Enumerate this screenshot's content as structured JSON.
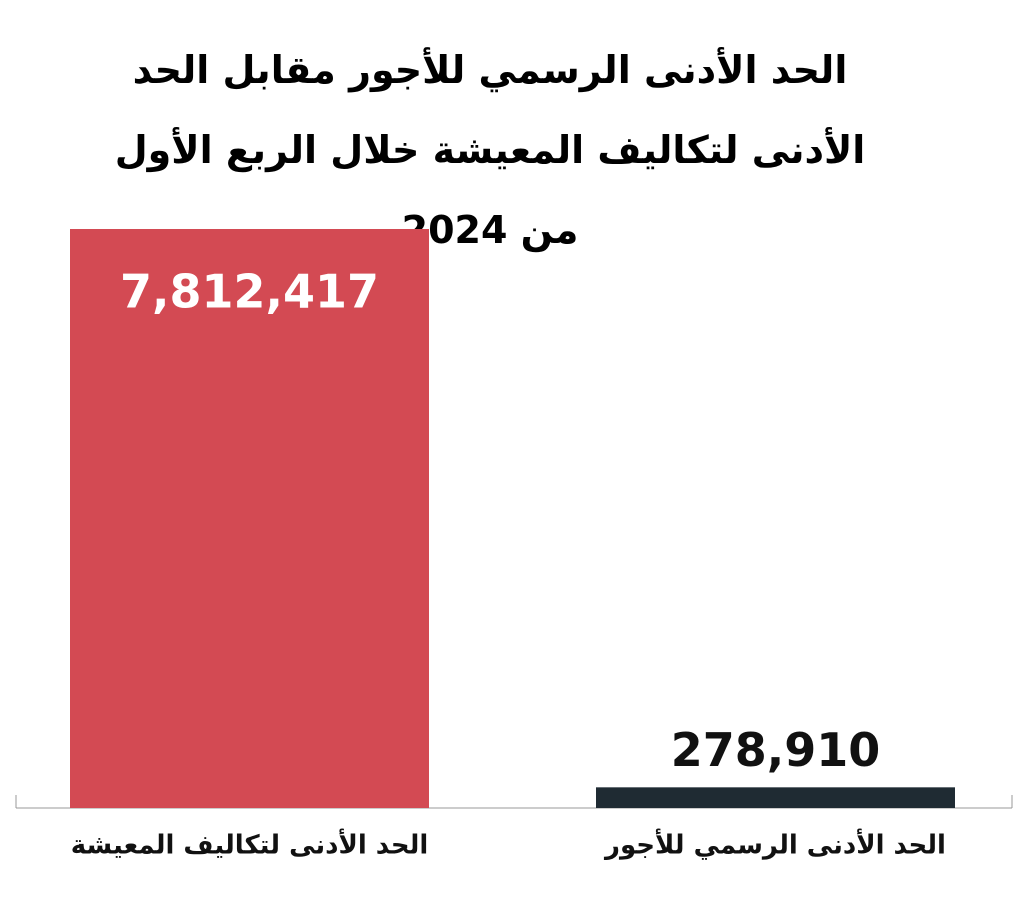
{
  "chart_data": {
    "type": "bar",
    "title": "الحد الأدنى الرسمي للأجور مقابل الحد الأدنى لتكاليف المعيشة خلال الربع الأول من 2024",
    "categories": [
      "الحد الأدنى لتكاليف المعيشة",
      "الحد الأدنى الرسمي للأجور"
    ],
    "values": [
      7812417,
      278910
    ],
    "value_labels": [
      "7,812,417",
      "278,910"
    ],
    "colors": [
      "#d34a53",
      "#1f2b33"
    ]
  }
}
